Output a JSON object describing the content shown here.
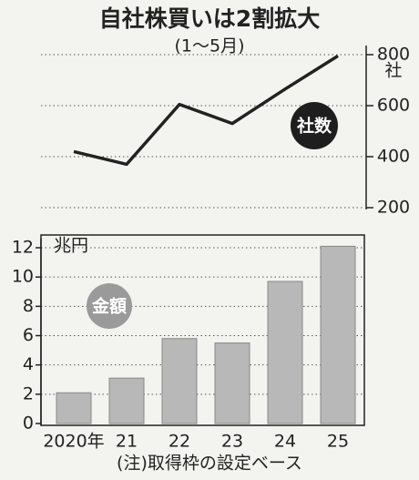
{
  "title": "自社株買いは2割拡大",
  "subtitle": "(1～5月)",
  "note": "(注)取得枠の設定ベース",
  "chart_data": [
    {
      "type": "line",
      "values": [
        420,
        370,
        605,
        530,
        665,
        795
      ],
      "color": "#222222",
      "ylim": [
        200,
        800
      ],
      "yticks": [
        200,
        400,
        600,
        800
      ],
      "grid": true,
      "axis_side": "right",
      "axis_unit": "社",
      "badge": "社数",
      "badge_color": "#1e1e1e"
    },
    {
      "type": "bar",
      "categories": [
        "2020年",
        "21",
        "22",
        "23",
        "24",
        "25"
      ],
      "values": [
        2.1,
        3.1,
        5.8,
        5.5,
        9.7,
        12.1
      ],
      "color": "#b8b8b8",
      "ylim": [
        0,
        12
      ],
      "yticks": [
        0,
        2,
        4,
        6,
        8,
        10,
        12
      ],
      "grid": true,
      "axis_side": "left",
      "axis_unit": "兆円",
      "badge": "金額",
      "badge_color": "#9a9a9a"
    }
  ]
}
